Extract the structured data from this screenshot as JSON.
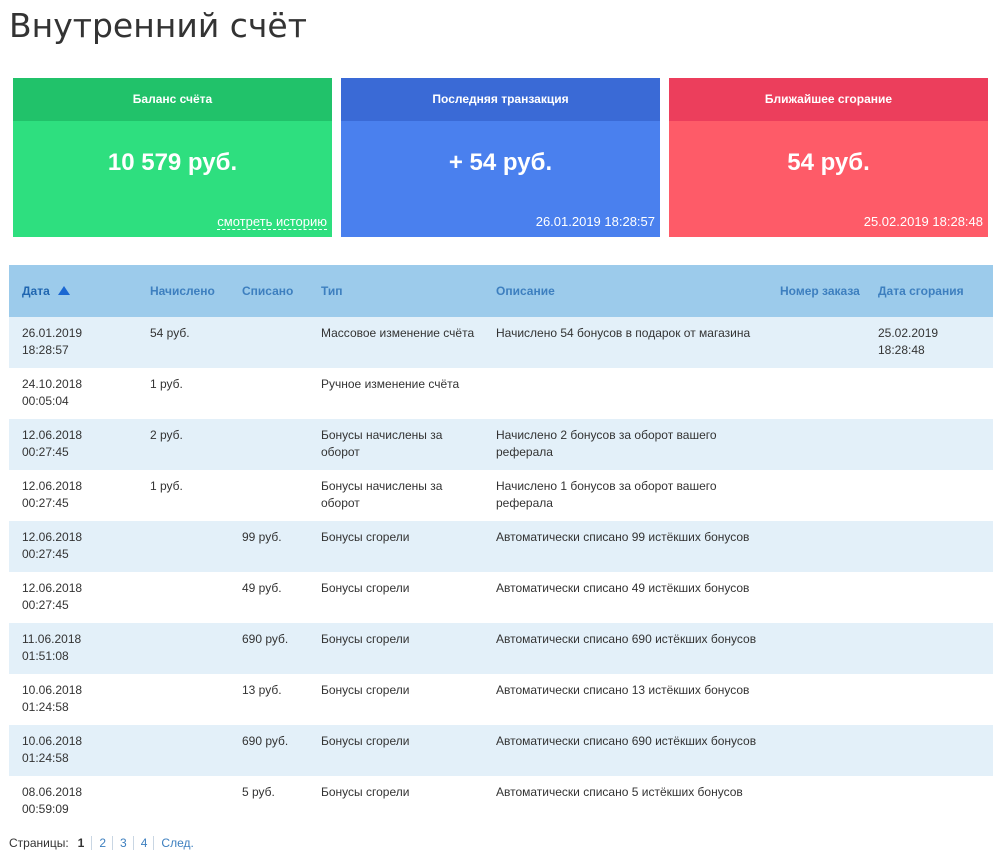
{
  "page": {
    "title": "Внутренний счёт"
  },
  "cards": {
    "balance": {
      "title": "Баланс счёта",
      "value": "10 579 руб.",
      "link": "смотреть историю"
    },
    "last_transaction": {
      "title": "Последняя транзакция",
      "value": "+ 54 руб.",
      "date": "26.01.2019 18:28:57"
    },
    "next_expiration": {
      "title": "Ближайшее сгорание",
      "value": "54 руб.",
      "date": "25.02.2019 18:28:48"
    }
  },
  "table": {
    "headers": {
      "date": "Дата",
      "credited": "Начислено",
      "debited": "Списано",
      "type": "Тип",
      "description": "Описание",
      "order": "Номер заказа",
      "expires": "Дата сгорания"
    },
    "rows": [
      {
        "date": "26.01.2019",
        "time": "18:28:57",
        "credited": "54 руб.",
        "debited": "",
        "type": "Массовое изменение счёта",
        "description": "Начислено 54 бонусов в подарок от магазина",
        "order": "",
        "exp_date": "25.02.2019",
        "exp_time": "18:28:48"
      },
      {
        "date": "24.10.2018",
        "time": "00:05:04",
        "credited": "1 руб.",
        "debited": "",
        "type": "Ручное изменение счёта",
        "description": "",
        "order": "",
        "exp_date": "",
        "exp_time": ""
      },
      {
        "date": "12.06.2018",
        "time": "00:27:45",
        "credited": "2 руб.",
        "debited": "",
        "type": "Бонусы начислены за оборот",
        "description": "Начислено 2 бонусов за оборот вашего реферала",
        "order": "",
        "exp_date": "",
        "exp_time": ""
      },
      {
        "date": "12.06.2018",
        "time": "00:27:45",
        "credited": "1 руб.",
        "debited": "",
        "type": "Бонусы начислены за оборот",
        "description": "Начислено 1 бонусов за оборот вашего реферала",
        "order": "",
        "exp_date": "",
        "exp_time": ""
      },
      {
        "date": "12.06.2018",
        "time": "00:27:45",
        "credited": "",
        "debited": "99 руб.",
        "type": "Бонусы сгорели",
        "description": "Автоматически списано 99 истёкших бонусов",
        "order": "",
        "exp_date": "",
        "exp_time": ""
      },
      {
        "date": "12.06.2018",
        "time": "00:27:45",
        "credited": "",
        "debited": "49 руб.",
        "type": "Бонусы сгорели",
        "description": "Автоматически списано 49 истёкших бонусов",
        "order": "",
        "exp_date": "",
        "exp_time": ""
      },
      {
        "date": "11.06.2018",
        "time": "01:51:08",
        "credited": "",
        "debited": "690 руб.",
        "type": "Бонусы сгорели",
        "description": "Автоматически списано 690 истёкших бонусов",
        "order": "",
        "exp_date": "",
        "exp_time": ""
      },
      {
        "date": "10.06.2018",
        "time": "01:24:58",
        "credited": "",
        "debited": "13 руб.",
        "type": "Бонусы сгорели",
        "description": "Автоматически списано 13 истёкших бонусов",
        "order": "",
        "exp_date": "",
        "exp_time": ""
      },
      {
        "date": "10.06.2018",
        "time": "01:24:58",
        "credited": "",
        "debited": "690 руб.",
        "type": "Бонусы сгорели",
        "description": "Автоматически списано 690 истёкших бонусов",
        "order": "",
        "exp_date": "",
        "exp_time": ""
      },
      {
        "date": "08.06.2018",
        "time": "00:59:09",
        "credited": "",
        "debited": "5 руб.",
        "type": "Бонусы сгорели",
        "description": "Автоматически списано 5 истёкших бонусов",
        "order": "",
        "exp_date": "",
        "exp_time": ""
      }
    ]
  },
  "pagination": {
    "label": "Страницы:",
    "current": "1",
    "pages": [
      "2",
      "3",
      "4"
    ],
    "next": "След."
  }
}
